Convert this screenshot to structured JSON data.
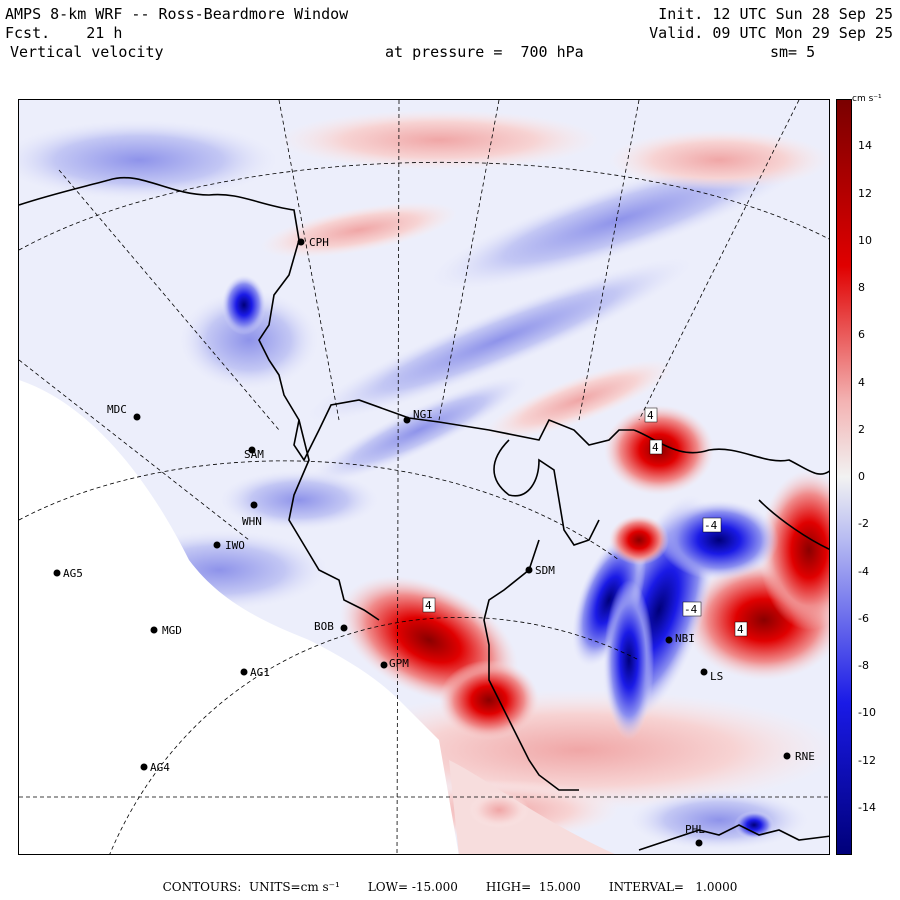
{
  "header": {
    "title": "AMPS 8-km WRF -- Ross-Beardmore Window",
    "fcst": "Fcst.    21 h",
    "field": "Vertical velocity",
    "pressure": "at pressure =  700 hPa",
    "init": "Init. 12 UTC Sun 28 Sep 25",
    "valid": "Valid. 09 UTC Mon 29 Sep 25",
    "smoothing": "sm= 5"
  },
  "colorbar": {
    "units_label": "cm s⁻¹",
    "ticks": [
      "14",
      "12",
      "10",
      "8",
      "6",
      "4",
      "2",
      "0",
      "-2",
      "-4",
      "-6",
      "-8",
      "-10",
      "-12",
      "-14"
    ],
    "min": -16,
    "max": 16,
    "colors": {
      "max_red": "#7a0000",
      "red": "#e00000",
      "light_red": "#f3b3b3",
      "neutral": "#f2f2f2",
      "light_blue": "#b9bdf2",
      "blue": "#1a1ae6",
      "max_blue": "#00007a"
    }
  },
  "stations": [
    {
      "name": "CPH"
    },
    {
      "name": "MDC"
    },
    {
      "name": "NGI"
    },
    {
      "name": "SAM"
    },
    {
      "name": "WHN"
    },
    {
      "name": "IWO"
    },
    {
      "name": "AG5"
    },
    {
      "name": "SDM"
    },
    {
      "name": "BOB"
    },
    {
      "name": "MGD"
    },
    {
      "name": "GPM"
    },
    {
      "name": "AG1"
    },
    {
      "name": "NBI"
    },
    {
      "name": "LS"
    },
    {
      "name": "AG4"
    },
    {
      "name": "RNE"
    },
    {
      "name": "PHL"
    }
  ],
  "contour_labels": [
    "4",
    "4",
    "-4",
    "-4",
    "4",
    "4"
  ],
  "footer": {
    "contours": "CONTOURS:  UNITS=cm s⁻¹",
    "low": "LOW= -15.000",
    "high": "HIGH=  15.000",
    "interval": "INTERVAL=   1.0000"
  }
}
